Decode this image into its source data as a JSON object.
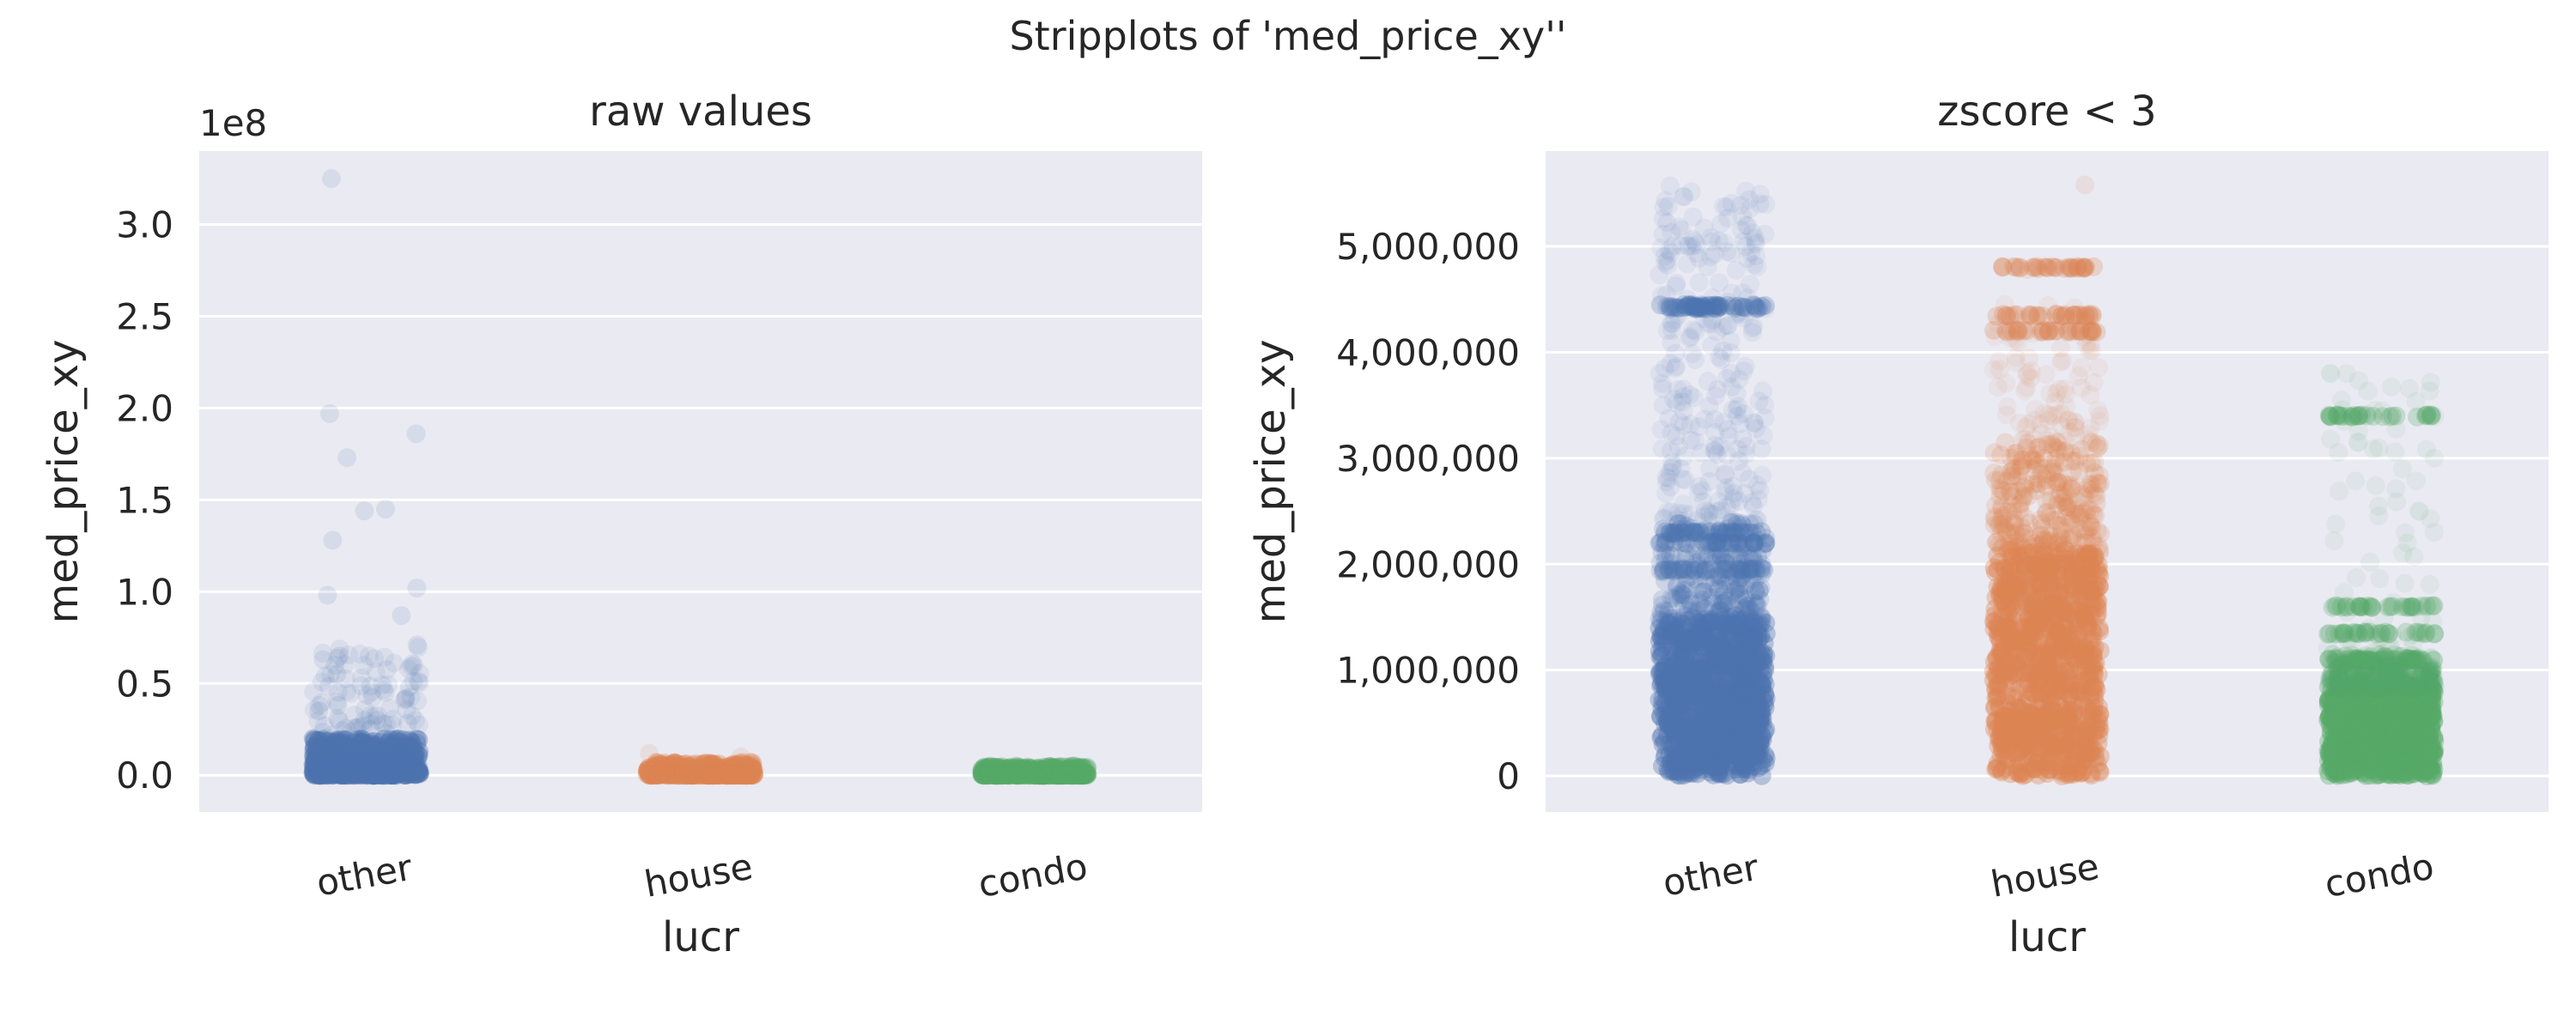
{
  "figure": {
    "suptitle": "Stripplots of 'med_price_xy''",
    "background_color": "#ffffff",
    "axes_face_color": "#eaeaf2",
    "grid_color": "#ffffff"
  },
  "chart_data": [
    {
      "type": "scatter",
      "subtype": "stripplot",
      "title": "raw values",
      "xlabel": "lucr",
      "ylabel": "med_price_xy",
      "y_offset_label": "1e8",
      "y_scale_factor": 100000000,
      "categories": [
        "other",
        "house",
        "condo"
      ],
      "category_colors": [
        "#4c72b0",
        "#dd8452",
        "#55a868"
      ],
      "ylim": [
        -0.2,
        3.4
      ],
      "yticks": [
        0.0,
        0.5,
        1.0,
        1.5,
        2.0,
        2.5,
        3.0
      ],
      "ytick_labels": [
        "0.0",
        "0.5",
        "1.0",
        "1.5",
        "2.0",
        "2.5",
        "3.0"
      ],
      "grid": true,
      "series": [
        {
          "category": "other",
          "dense_range": [
            0.0,
            0.2
          ],
          "outliers": [
            3.25,
            1.97,
            1.86,
            1.73,
            1.45,
            1.44,
            1.28,
            1.02,
            0.98,
            0.87,
            0.71,
            0.65,
            0.63,
            0.6,
            0.55,
            0.48,
            0.42,
            0.38,
            0.35,
            0.31,
            0.28,
            0.26
          ]
        },
        {
          "category": "house",
          "dense_range": [
            0.0,
            0.07
          ],
          "outliers": [
            0.12,
            0.1
          ]
        },
        {
          "category": "condo",
          "dense_range": [
            0.0,
            0.05
          ],
          "outliers": []
        }
      ]
    },
    {
      "type": "scatter",
      "subtype": "stripplot",
      "title": "zscore < 3",
      "xlabel": "lucr",
      "ylabel": "med_price_xy",
      "categories": [
        "other",
        "house",
        "condo"
      ],
      "category_colors": [
        "#4c72b0",
        "#dd8452",
        "#55a868"
      ],
      "ylim": [
        -340000,
        5900000
      ],
      "yticks": [
        0,
        1000000,
        2000000,
        3000000,
        4000000,
        5000000
      ],
      "ytick_labels": [
        "0",
        "1,000,000",
        "2,000,000",
        "3,000,000",
        "4,000,000",
        "5,000,000"
      ],
      "grid": true,
      "series": [
        {
          "category": "other",
          "dense_range": [
            0,
            1450000
          ],
          "medium_range": [
            1450000,
            2400000
          ],
          "sparse_range": [
            2400000,
            5600000
          ],
          "bands": [
            4420000,
            4440000,
            2300000,
            2200000,
            1950000
          ]
        },
        {
          "category": "house",
          "dense_range": [
            0,
            2100000
          ],
          "medium_range": [
            2100000,
            3150000
          ],
          "sparse_range": [
            3150000,
            4450000
          ],
          "bands": [
            4800000,
            4350000,
            4200000
          ],
          "outliers": [
            5580000,
            4800000,
            4780000
          ]
        },
        {
          "category": "condo",
          "dense_range": [
            0,
            830000
          ],
          "medium_range": [
            830000,
            1150000
          ],
          "sparse_range": [
            1150000,
            3850000
          ],
          "bands": [
            3400000,
            1600000,
            1350000,
            1100000
          ],
          "outliers": [
            3800000,
            3150000,
            2500000
          ]
        }
      ]
    }
  ]
}
